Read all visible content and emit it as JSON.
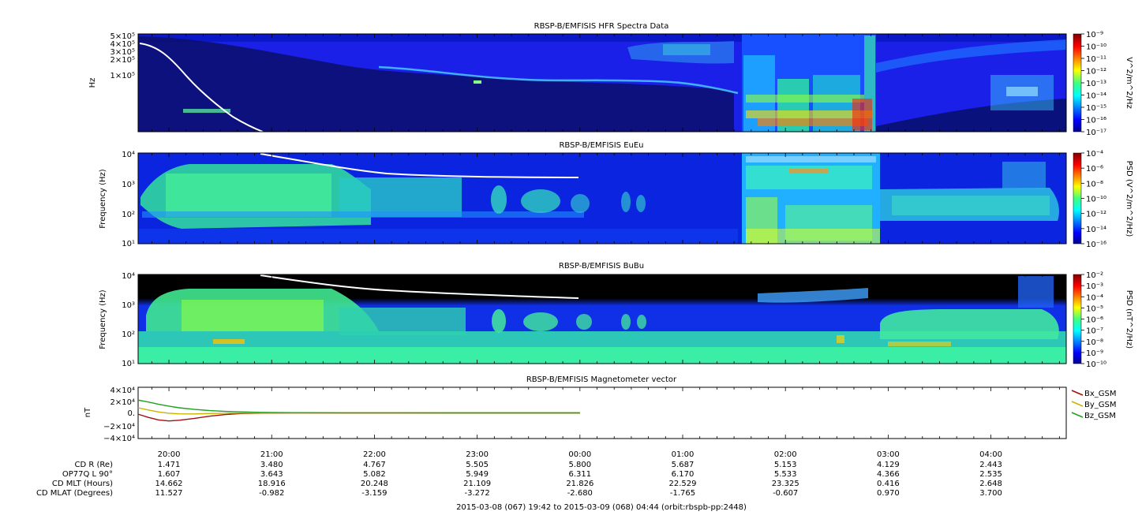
{
  "chart_data": [
    {
      "type": "heatmap",
      "title": "RBSP-B/EMFISIS  HFR Spectra Data",
      "ylabel": "Hz",
      "yscale": "log",
      "ylim": [
        10000,
        500000
      ],
      "y_tick_labels": [
        "5×10⁵",
        "4×10⁵",
        "3×10⁵",
        "2×10⁵",
        "1×10⁵"
      ],
      "colorbar": {
        "label": "V^2/m^2/Hz",
        "scale": "log",
        "range": [
          1e-17,
          1e-09
        ],
        "tick_labels": [
          "10⁻⁹",
          "10⁻¹⁰",
          "10⁻¹¹",
          "10⁻¹²",
          "10⁻¹³",
          "10⁻¹⁴",
          "10⁻¹⁵",
          "10⁻¹⁶",
          "10⁻¹⁷"
        ]
      }
    },
    {
      "type": "heatmap",
      "title": "RBSP-B/EMFISIS  EuEu",
      "ylabel": "Frequency (Hz)",
      "yscale": "log",
      "ylim": [
        10,
        10000
      ],
      "y_tick_labels": [
        "10⁴",
        "10³",
        "10²",
        "10¹"
      ],
      "colorbar": {
        "label": "PSD (V^2/m^2/Hz)",
        "scale": "log",
        "range": [
          1e-16,
          0.0001
        ],
        "tick_labels": [
          "10⁻⁴",
          "10⁻⁶",
          "10⁻⁸",
          "10⁻¹⁰",
          "10⁻¹²",
          "10⁻¹⁴",
          "10⁻¹⁶"
        ]
      }
    },
    {
      "type": "heatmap",
      "title": "RBSP-B/EMFISIS  BuBu",
      "ylabel": "Frequency (Hz)",
      "yscale": "log",
      "ylim": [
        10,
        10000
      ],
      "y_tick_labels": [
        "10⁴",
        "10³",
        "10²",
        "10¹"
      ],
      "colorbar": {
        "label": "PSD (nT^2/Hz)",
        "scale": "log",
        "range": [
          1e-10,
          0.01
        ],
        "tick_labels": [
          "10⁻²",
          "10⁻³",
          "10⁻⁴",
          "10⁻⁵",
          "10⁻⁶",
          "10⁻⁷",
          "10⁻⁸",
          "10⁻⁹",
          "10⁻¹⁰"
        ]
      }
    },
    {
      "type": "line",
      "title": "RBSP-B/EMFISIS  Magnetometer vector",
      "ylabel": "nT",
      "ylim": [
        -40000,
        40000
      ],
      "y_tick_labels": [
        "4×10⁴",
        "2×10⁴",
        "0.",
        "−2×10⁴",
        "−4×10⁴"
      ],
      "x_hours": [
        0,
        0.1,
        0.2,
        0.3,
        0.4,
        0.55,
        0.7,
        0.85,
        1.0,
        1.2,
        1.5,
        2.0,
        3.0,
        4.3
      ],
      "series": [
        {
          "name": "Bx_GSM",
          "color": "#a01010",
          "values": [
            -2000,
            -7000,
            -11000,
            -12500,
            -11500,
            -8500,
            -5000,
            -2500,
            -1000,
            -300,
            0,
            0,
            0,
            0
          ]
        },
        {
          "name": "By_GSM",
          "color": "#c8b400",
          "values": [
            8000,
            4500,
            1500,
            -500,
            -1500,
            -1600,
            -1000,
            -500,
            -200,
            0,
            0,
            0,
            0,
            0
          ]
        },
        {
          "name": "Bz_GSM",
          "color": "#20a020",
          "values": [
            20000,
            17000,
            13500,
            10500,
            8000,
            5500,
            3600,
            2400,
            1600,
            900,
            400,
            100,
            0,
            0
          ]
        }
      ]
    }
  ],
  "time_axis": {
    "range_hours": [
      19.7,
      28.733
    ],
    "tick_labels": [
      "20:00",
      "21:00",
      "22:00",
      "23:00",
      "00:00",
      "01:00",
      "02:00",
      "03:00",
      "04:00"
    ]
  },
  "ephemeris": {
    "labels": [
      "CD R (Re)",
      "OP77Q L 90°",
      "CD MLT (Hours)",
      "CD MLAT (Degrees)"
    ],
    "rows": [
      [
        "1.471",
        "3.480",
        "4.767",
        "5.505",
        "5.800",
        "5.687",
        "5.153",
        "4.129",
        "2.443"
      ],
      [
        "1.607",
        "3.643",
        "5.082",
        "5.949",
        "6.311",
        "6.170",
        "5.533",
        "4.366",
        "2.535"
      ],
      [
        "14.662",
        "18.916",
        "20.248",
        "21.109",
        "21.826",
        "22.529",
        "23.325",
        "0.416",
        "2.648"
      ],
      [
        "11.527",
        "-0.982",
        "-3.159",
        "-3.272",
        "-2.680",
        "-1.765",
        "-0.607",
        "0.970",
        "3.700"
      ]
    ]
  },
  "footer": "2015-03-08 (067) 19:42 to 2015-03-09 (068) 04:44 (orbit:rbspb-pp:2448)"
}
